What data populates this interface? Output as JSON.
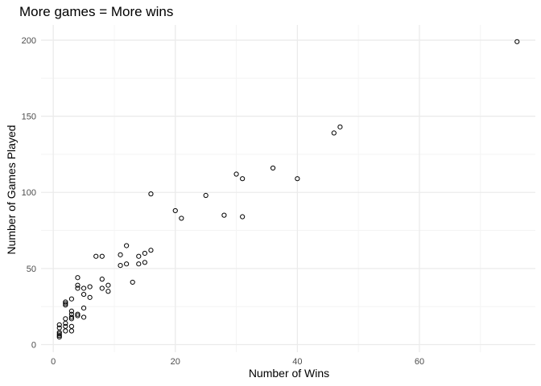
{
  "chart_data": {
    "type": "scatter",
    "title": "More games = More wins",
    "xlabel": "Number of Wins",
    "ylabel": "Number of Games Played",
    "xlim": [
      -2,
      79
    ],
    "ylim": [
      -5,
      210
    ],
    "x_ticks": [
      0,
      20,
      40,
      60
    ],
    "y_ticks": [
      0,
      50,
      100,
      150,
      200
    ],
    "x_minor": [
      10,
      30,
      50,
      70
    ],
    "y_minor": [
      25,
      75,
      125,
      175
    ],
    "grid": true,
    "colors": {
      "major_grid": "#ebebeb",
      "minor_grid": "#f4f4f4",
      "point_stroke": "#000000"
    },
    "points": [
      {
        "x": 1,
        "y": 5
      },
      {
        "x": 1,
        "y": 6
      },
      {
        "x": 1,
        "y": 7
      },
      {
        "x": 1,
        "y": 8
      },
      {
        "x": 1,
        "y": 11
      },
      {
        "x": 1,
        "y": 13
      },
      {
        "x": 2,
        "y": 9
      },
      {
        "x": 2,
        "y": 12
      },
      {
        "x": 2,
        "y": 14
      },
      {
        "x": 2,
        "y": 17
      },
      {
        "x": 2,
        "y": 26
      },
      {
        "x": 2,
        "y": 27
      },
      {
        "x": 2,
        "y": 28
      },
      {
        "x": 3,
        "y": 9
      },
      {
        "x": 3,
        "y": 12
      },
      {
        "x": 3,
        "y": 17
      },
      {
        "x": 3,
        "y": 18
      },
      {
        "x": 3,
        "y": 20
      },
      {
        "x": 3,
        "y": 22
      },
      {
        "x": 3,
        "y": 30
      },
      {
        "x": 4,
        "y": 19
      },
      {
        "x": 4,
        "y": 20
      },
      {
        "x": 4,
        "y": 37
      },
      {
        "x": 4,
        "y": 39
      },
      {
        "x": 4,
        "y": 44
      },
      {
        "x": 5,
        "y": 18
      },
      {
        "x": 5,
        "y": 24
      },
      {
        "x": 5,
        "y": 33
      },
      {
        "x": 5,
        "y": 37
      },
      {
        "x": 6,
        "y": 31
      },
      {
        "x": 6,
        "y": 38
      },
      {
        "x": 7,
        "y": 58
      },
      {
        "x": 8,
        "y": 37
      },
      {
        "x": 8,
        "y": 43
      },
      {
        "x": 8,
        "y": 58
      },
      {
        "x": 9,
        "y": 35
      },
      {
        "x": 9,
        "y": 39
      },
      {
        "x": 11,
        "y": 52
      },
      {
        "x": 11,
        "y": 59
      },
      {
        "x": 12,
        "y": 53
      },
      {
        "x": 12,
        "y": 65
      },
      {
        "x": 13,
        "y": 41
      },
      {
        "x": 14,
        "y": 53
      },
      {
        "x": 14,
        "y": 58
      },
      {
        "x": 15,
        "y": 54
      },
      {
        "x": 15,
        "y": 60
      },
      {
        "x": 16,
        "y": 62
      },
      {
        "x": 16,
        "y": 99
      },
      {
        "x": 20,
        "y": 88
      },
      {
        "x": 21,
        "y": 83
      },
      {
        "x": 25,
        "y": 98
      },
      {
        "x": 28,
        "y": 85
      },
      {
        "x": 30,
        "y": 112
      },
      {
        "x": 31,
        "y": 84
      },
      {
        "x": 31,
        "y": 109
      },
      {
        "x": 36,
        "y": 116
      },
      {
        "x": 40,
        "y": 109
      },
      {
        "x": 46,
        "y": 139
      },
      {
        "x": 47,
        "y": 143
      },
      {
        "x": 76,
        "y": 199
      }
    ]
  }
}
